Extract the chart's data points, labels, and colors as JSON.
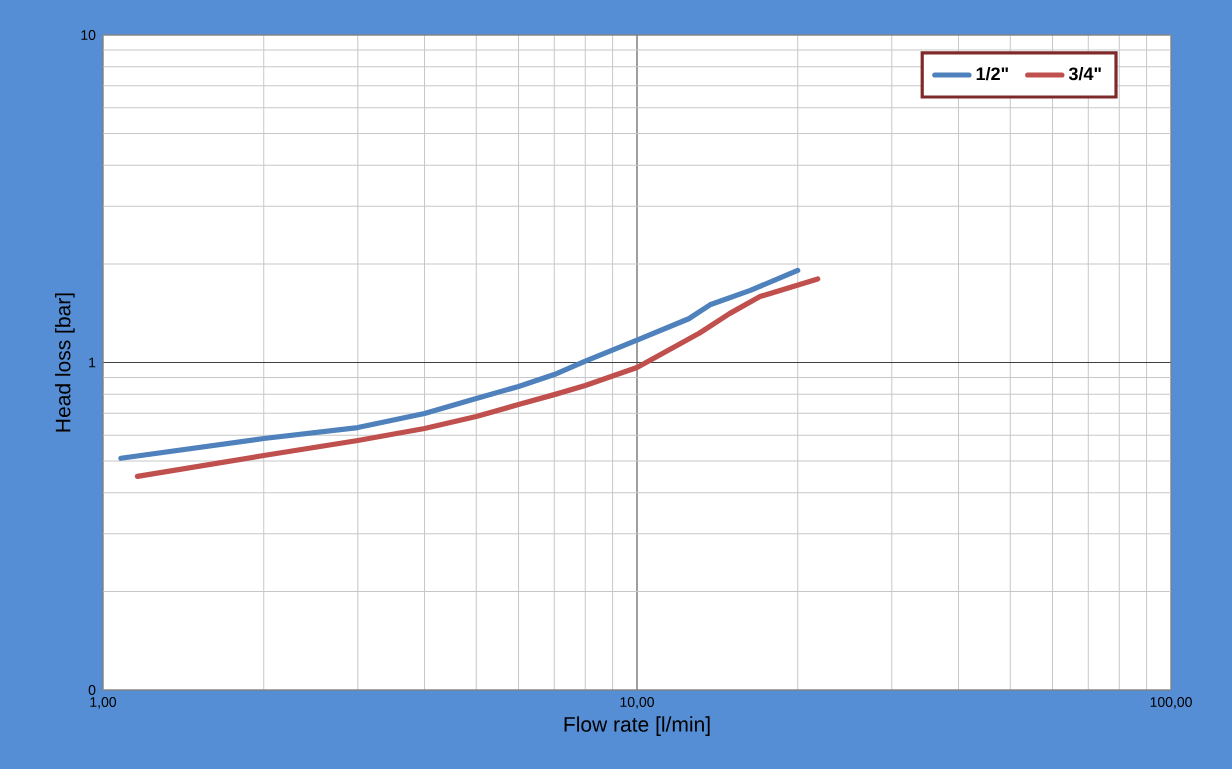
{
  "chart_data": {
    "type": "line",
    "xlabel": "Flow rate [l/min]",
    "ylabel": "Head loss [bar]",
    "log": "xy",
    "xlim": [
      1,
      100
    ],
    "ylim": [
      0.1,
      10
    ],
    "xticks": [
      {
        "value": 1,
        "label": "1,00"
      },
      {
        "value": 10,
        "label": "10,00"
      },
      {
        "value": 100,
        "label": "100,00"
      }
    ],
    "yticks": [
      {
        "value": 0.1,
        "label": "0"
      },
      1,
      10
    ],
    "grid": true,
    "legend": "top right",
    "series": [
      {
        "name": "1/2\"",
        "color": "#4f81bd",
        "x": [
          1.08,
          2.0,
          3.0,
          4.0,
          5.0,
          6.0,
          7.0,
          8.0,
          10.0,
          12.5,
          13.7,
          16.3,
          20.0
        ],
        "values": [
          0.51,
          0.586,
          0.633,
          0.699,
          0.776,
          0.845,
          0.919,
          1.01,
          1.17,
          1.36,
          1.5,
          1.66,
          1.91
        ]
      },
      {
        "name": "3/4\"",
        "color": "#c0504d",
        "x": [
          1.16,
          2.0,
          3.0,
          4.0,
          5.0,
          6.0,
          7.0,
          8.0,
          10.0,
          13.1,
          14.9,
          17.0,
          21.8
        ],
        "values": [
          0.449,
          0.52,
          0.578,
          0.629,
          0.684,
          0.744,
          0.798,
          0.851,
          0.965,
          1.23,
          1.41,
          1.59,
          1.8
        ]
      }
    ]
  }
}
